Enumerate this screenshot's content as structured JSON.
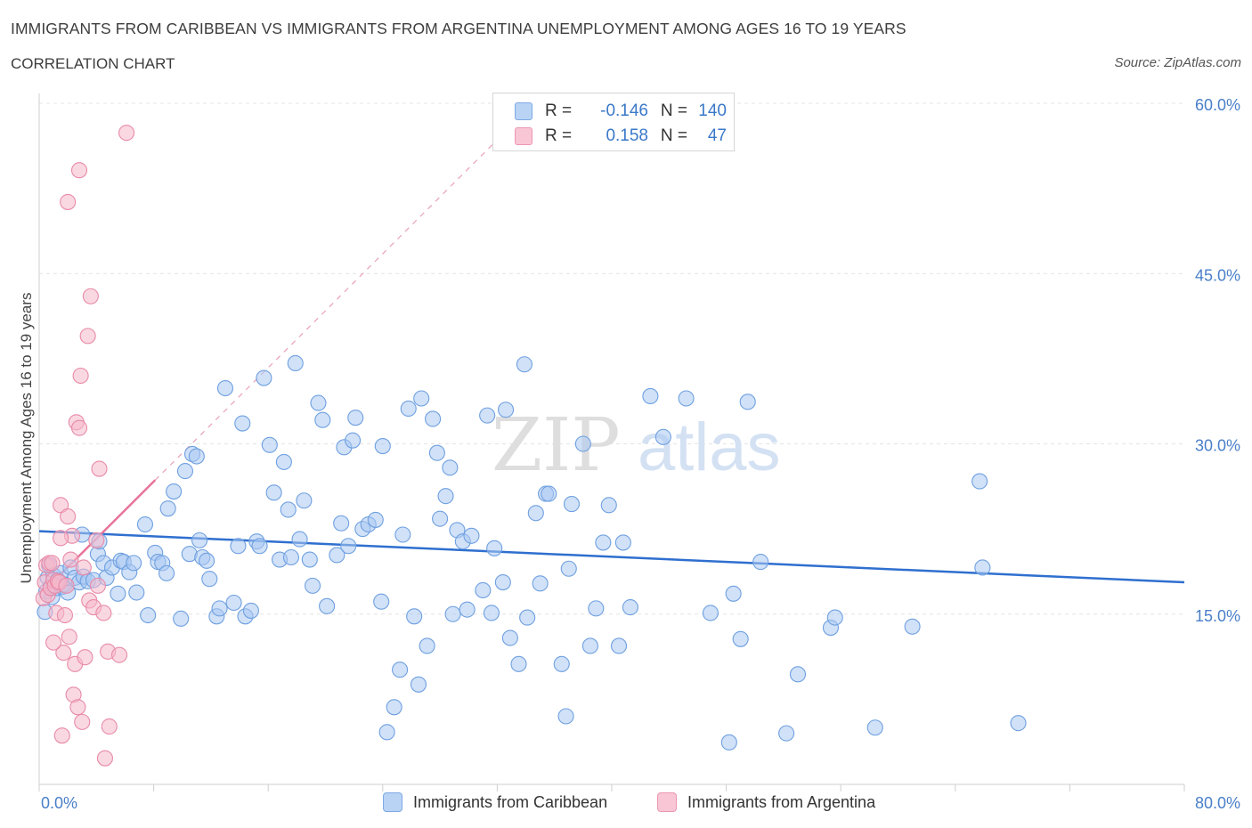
{
  "title": "IMMIGRANTS FROM CARIBBEAN VS IMMIGRANTS FROM ARGENTINA UNEMPLOYMENT AMONG AGES 16 TO 19 YEARS",
  "subtitle": "CORRELATION CHART",
  "source": "Source: ZipAtlas.com",
  "watermark": {
    "zip": "ZIP",
    "atlas": "atlas"
  },
  "legend": {
    "r_label": "R =",
    "n_label": "N =",
    "rows": [
      {
        "name": "Immigrants from Caribbean",
        "r": "-0.146",
        "n": "140",
        "color": "#a9c9f2"
      },
      {
        "name": "Immigrants from Argentina",
        "r": "0.158",
        "n": "47",
        "color": "#f6b8cb"
      }
    ]
  },
  "chart_data": {
    "type": "scatter",
    "title": "IMMIGRANTS FROM CARIBBEAN VS IMMIGRANTS FROM ARGENTINA UNEMPLOYMENT AMONG AGES 16 TO 19 YEARS",
    "ylabel": "Unemployment Among Ages 16 to 19 years",
    "xlabel": "",
    "xlim": [
      0,
      80
    ],
    "ylim": [
      0,
      60
    ],
    "x_tick_labels": [
      "0.0%",
      "80.0%"
    ],
    "y_ticks": [
      15,
      30,
      45,
      60
    ],
    "y_tick_labels": [
      "15.0%",
      "30.0%",
      "45.0%",
      "60.0%"
    ],
    "series": [
      {
        "name": "Immigrants from Caribbean",
        "color": "#a9c9f2",
        "stroke": "#6fa0e0",
        "trend": {
          "x": [
            0,
            80
          ],
          "y": [
            22.3,
            17.8
          ],
          "color": "#2f6fcf"
        },
        "points": [
          [
            0.4,
            15.2
          ],
          [
            0.5,
            17.0
          ],
          [
            0.6,
            18.2
          ],
          [
            0.7,
            19.3
          ],
          [
            0.8,
            17.4
          ],
          [
            0.9,
            16.5
          ],
          [
            1.0,
            18.4
          ],
          [
            1.2,
            17.3
          ],
          [
            1.3,
            18.0
          ],
          [
            1.5,
            18.6
          ],
          [
            1.6,
            17.4
          ],
          [
            1.8,
            17.6
          ],
          [
            2.0,
            16.9
          ],
          [
            2.2,
            19.1
          ],
          [
            2.5,
            18.2
          ],
          [
            2.8,
            17.8
          ],
          [
            3.0,
            22.0
          ],
          [
            3.1,
            18.3
          ],
          [
            3.4,
            17.9
          ],
          [
            3.8,
            18.0
          ],
          [
            4.1,
            20.3
          ],
          [
            4.2,
            21.4
          ],
          [
            4.5,
            19.5
          ],
          [
            4.7,
            18.2
          ],
          [
            5.1,
            19.1
          ],
          [
            5.5,
            16.8
          ],
          [
            5.7,
            19.7
          ],
          [
            5.9,
            19.6
          ],
          [
            6.3,
            18.7
          ],
          [
            6.6,
            19.5
          ],
          [
            6.8,
            16.9
          ],
          [
            7.4,
            22.9
          ],
          [
            7.6,
            14.9
          ],
          [
            8.1,
            20.4
          ],
          [
            8.3,
            19.6
          ],
          [
            8.6,
            19.5
          ],
          [
            8.9,
            18.6
          ],
          [
            9.4,
            25.8
          ],
          [
            9.0,
            24.3
          ],
          [
            9.9,
            14.6
          ],
          [
            10.2,
            27.6
          ],
          [
            10.5,
            20.3
          ],
          [
            10.7,
            29.1
          ],
          [
            11.0,
            28.9
          ],
          [
            11.2,
            21.5
          ],
          [
            11.4,
            20.0
          ],
          [
            11.7,
            19.7
          ],
          [
            11.9,
            18.1
          ],
          [
            12.4,
            14.8
          ],
          [
            12.6,
            15.5
          ],
          [
            13.0,
            34.9
          ],
          [
            13.6,
            16.0
          ],
          [
            13.9,
            21.0
          ],
          [
            14.2,
            31.8
          ],
          [
            14.4,
            14.8
          ],
          [
            14.8,
            15.3
          ],
          [
            15.2,
            21.4
          ],
          [
            15.4,
            21.0
          ],
          [
            15.7,
            35.8
          ],
          [
            16.1,
            29.9
          ],
          [
            16.4,
            25.7
          ],
          [
            16.8,
            19.8
          ],
          [
            17.1,
            28.4
          ],
          [
            17.4,
            24.2
          ],
          [
            17.6,
            20.0
          ],
          [
            17.9,
            37.1
          ],
          [
            18.2,
            21.6
          ],
          [
            18.5,
            25.0
          ],
          [
            18.9,
            19.8
          ],
          [
            19.1,
            17.5
          ],
          [
            19.5,
            33.6
          ],
          [
            19.8,
            32.1
          ],
          [
            20.1,
            15.7
          ],
          [
            20.8,
            20.2
          ],
          [
            21.1,
            23.0
          ],
          [
            21.3,
            29.7
          ],
          [
            21.6,
            21.0
          ],
          [
            21.9,
            30.3
          ],
          [
            22.1,
            32.3
          ],
          [
            22.6,
            22.5
          ],
          [
            23.0,
            22.9
          ],
          [
            23.5,
            23.3
          ],
          [
            23.9,
            16.1
          ],
          [
            24.0,
            29.8
          ],
          [
            24.3,
            4.6
          ],
          [
            24.8,
            6.8
          ],
          [
            25.2,
            10.1
          ],
          [
            25.4,
            22.0
          ],
          [
            25.8,
            33.1
          ],
          [
            26.2,
            14.8
          ],
          [
            26.5,
            8.8
          ],
          [
            26.7,
            34.0
          ],
          [
            27.1,
            12.2
          ],
          [
            27.5,
            32.2
          ],
          [
            27.8,
            29.2
          ],
          [
            28.0,
            23.4
          ],
          [
            28.4,
            25.4
          ],
          [
            28.7,
            27.9
          ],
          [
            28.9,
            15.0
          ],
          [
            29.2,
            22.4
          ],
          [
            29.6,
            21.4
          ],
          [
            29.9,
            15.4
          ],
          [
            30.2,
            21.9
          ],
          [
            31.0,
            17.1
          ],
          [
            31.3,
            32.5
          ],
          [
            31.6,
            15.1
          ],
          [
            31.8,
            20.8
          ],
          [
            32.4,
            17.8
          ],
          [
            32.6,
            33.0
          ],
          [
            32.9,
            12.9
          ],
          [
            33.5,
            10.6
          ],
          [
            33.9,
            37.0
          ],
          [
            34.1,
            14.7
          ],
          [
            34.7,
            23.9
          ],
          [
            35.0,
            17.7
          ],
          [
            35.4,
            25.6
          ],
          [
            35.6,
            25.6
          ],
          [
            36.5,
            10.6
          ],
          [
            36.8,
            6.0
          ],
          [
            37.0,
            19.0
          ],
          [
            37.2,
            24.7
          ],
          [
            38.0,
            30.0
          ],
          [
            38.5,
            12.2
          ],
          [
            38.9,
            15.5
          ],
          [
            39.4,
            21.3
          ],
          [
            39.8,
            24.6
          ],
          [
            40.5,
            12.2
          ],
          [
            40.8,
            21.3
          ],
          [
            41.3,
            15.6
          ],
          [
            42.7,
            34.2
          ],
          [
            43.6,
            30.6
          ],
          [
            45.2,
            34.0
          ],
          [
            46.9,
            15.1
          ],
          [
            48.2,
            3.7
          ],
          [
            48.5,
            16.8
          ],
          [
            49.0,
            12.8
          ],
          [
            49.5,
            33.7
          ],
          [
            50.4,
            19.6
          ],
          [
            52.2,
            4.5
          ],
          [
            53.0,
            9.7
          ],
          [
            55.3,
            13.8
          ],
          [
            55.6,
            14.7
          ],
          [
            58.4,
            5.0
          ],
          [
            61.0,
            13.9
          ],
          [
            65.7,
            26.7
          ],
          [
            65.9,
            19.1
          ],
          [
            68.4,
            5.4
          ]
        ]
      },
      {
        "name": "Immigrants from Argentina",
        "color": "#f6b8cb",
        "stroke": "#e88aa8",
        "trend": {
          "x": [
            0.3,
            8.1
          ],
          "y": [
            17.0,
            26.8
          ],
          "color": "#e8739a"
        },
        "trend_extended": {
          "x": [
            8.1,
            32.5
          ],
          "y": [
            26.8,
            57.4
          ]
        },
        "points": [
          [
            0.3,
            16.4
          ],
          [
            0.4,
            17.8
          ],
          [
            0.5,
            19.3
          ],
          [
            0.6,
            16.7
          ],
          [
            0.7,
            19.5
          ],
          [
            0.8,
            17.3
          ],
          [
            0.9,
            19.5
          ],
          [
            1.0,
            18.0
          ],
          [
            1.1,
            17.5
          ],
          [
            1.2,
            15.1
          ],
          [
            1.3,
            17.9
          ],
          [
            1.4,
            17.8
          ],
          [
            1.5,
            24.6
          ],
          [
            1.7,
            11.6
          ],
          [
            1.8,
            14.9
          ],
          [
            1.9,
            17.5
          ],
          [
            2.0,
            23.6
          ],
          [
            2.1,
            13.0
          ],
          [
            2.2,
            19.8
          ],
          [
            2.3,
            21.9
          ],
          [
            2.4,
            7.9
          ],
          [
            2.5,
            10.6
          ],
          [
            2.6,
            31.9
          ],
          [
            2.7,
            6.8
          ],
          [
            2.8,
            31.4
          ],
          [
            2.9,
            36.0
          ],
          [
            3.1,
            19.1
          ],
          [
            3.2,
            11.2
          ],
          [
            3.4,
            39.5
          ],
          [
            3.5,
            16.2
          ],
          [
            3.6,
            43.0
          ],
          [
            3.8,
            15.6
          ],
          [
            4.0,
            21.5
          ],
          [
            4.1,
            17.5
          ],
          [
            4.2,
            27.8
          ],
          [
            4.5,
            15.1
          ],
          [
            4.8,
            11.7
          ],
          [
            4.9,
            5.1
          ],
          [
            5.6,
            11.4
          ],
          [
            6.1,
            57.4
          ],
          [
            2.8,
            54.1
          ],
          [
            2.0,
            51.3
          ],
          [
            4.6,
            2.3
          ],
          [
            1.6,
            4.3
          ],
          [
            1.0,
            12.5
          ],
          [
            3.0,
            5.5
          ],
          [
            1.5,
            21.7
          ]
        ]
      }
    ]
  }
}
